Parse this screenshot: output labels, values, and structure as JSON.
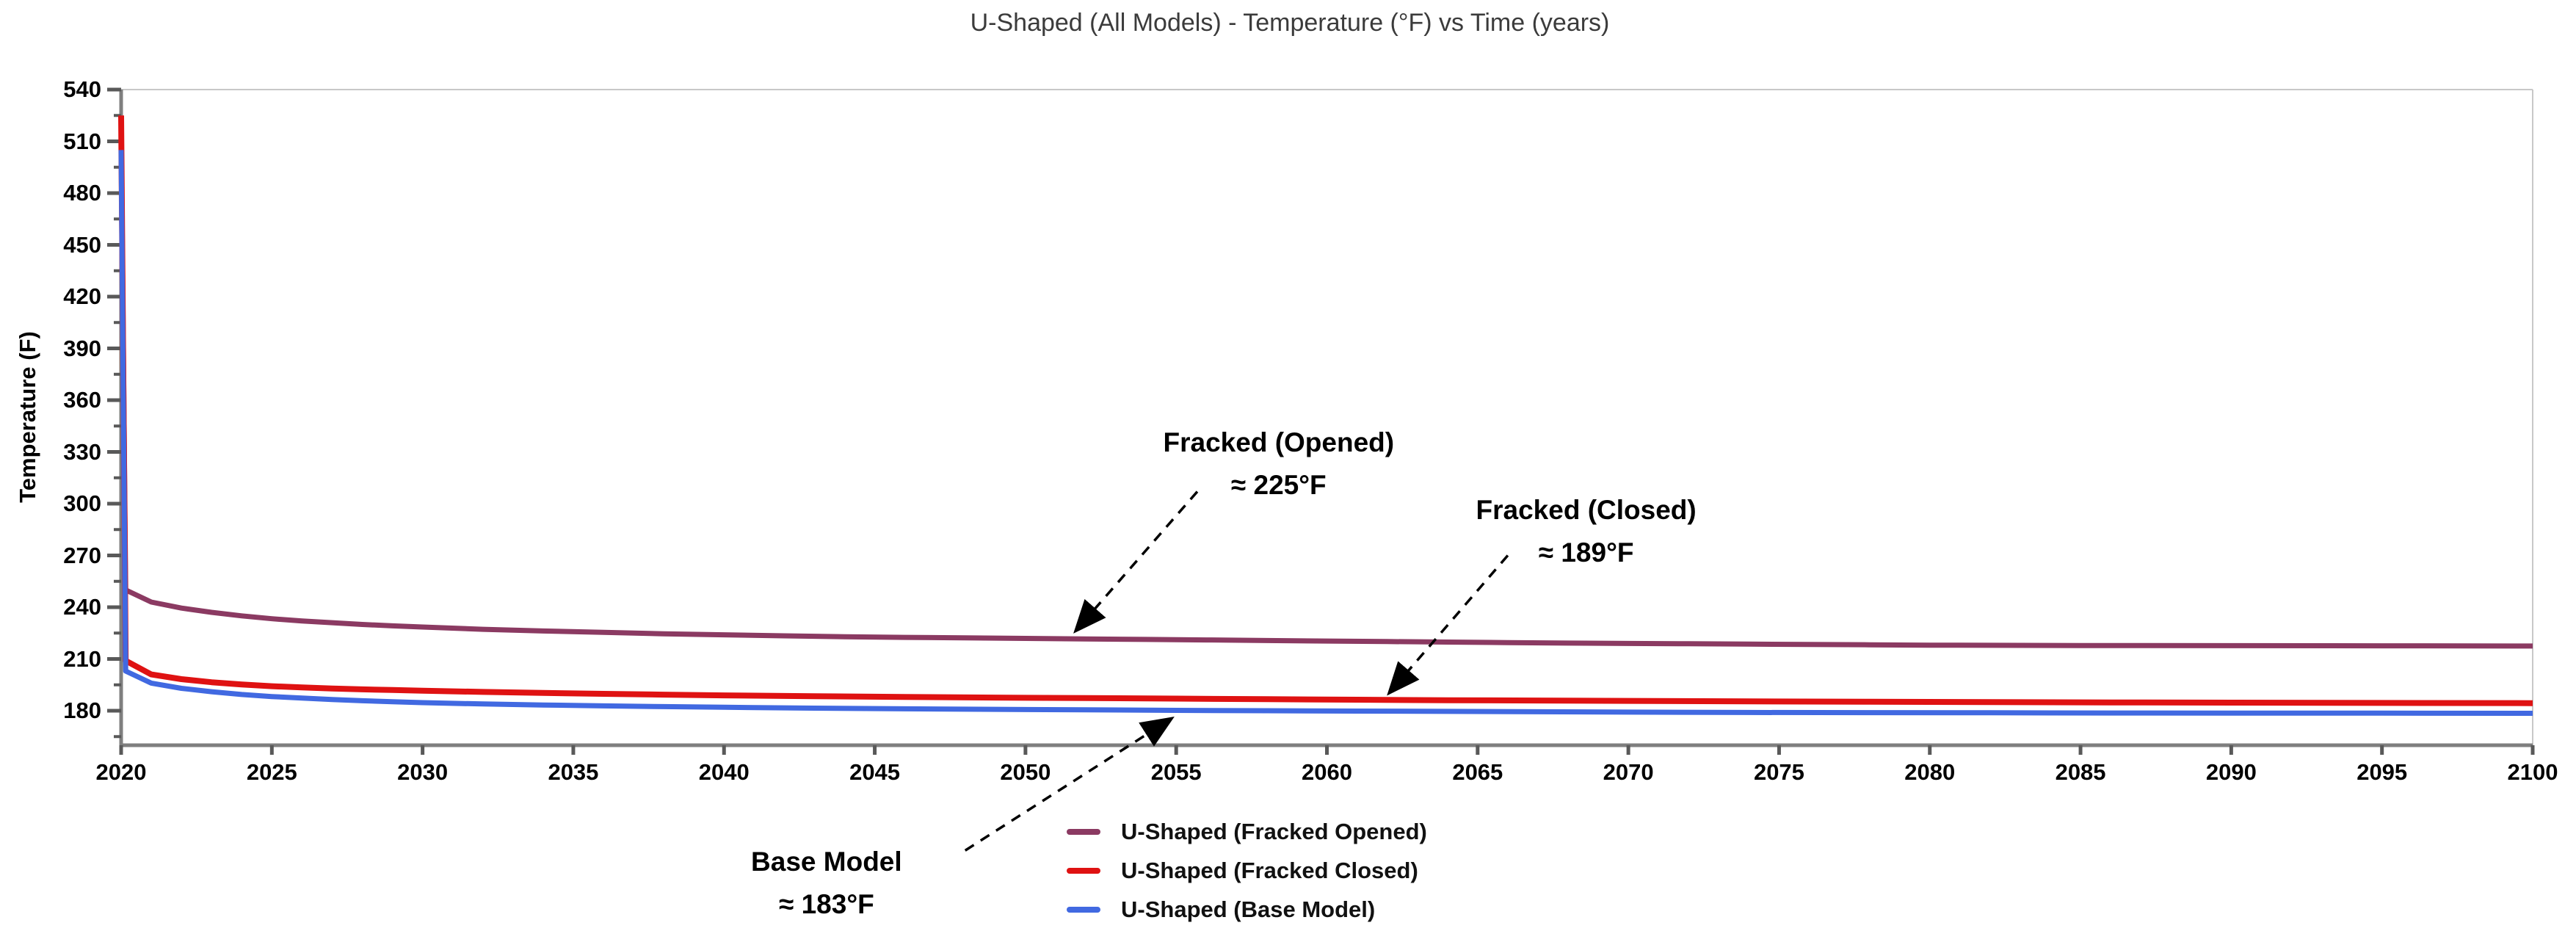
{
  "title": "U-Shaped (All Models) - Temperature (°F) vs Time (years)",
  "axes": {
    "y_label": "Temperature (F)",
    "y_ticks": [
      180,
      210,
      240,
      270,
      300,
      330,
      360,
      390,
      420,
      450,
      480,
      510,
      540
    ],
    "y_minor_ticks": [
      165,
      195,
      225,
      255,
      285,
      315,
      345,
      375,
      405,
      435,
      465,
      495,
      525
    ],
    "x_ticks": [
      2020,
      2025,
      2030,
      2035,
      2040,
      2045,
      2050,
      2055,
      2060,
      2065,
      2070,
      2075,
      2080,
      2085,
      2090,
      2095,
      2100
    ]
  },
  "colors": {
    "fracked_opened": "#8B3A62",
    "fracked_closed": "#DF1212",
    "base_model": "#4169E1",
    "axis": "#7F7F7F",
    "plot_border": "#C8C8C8",
    "tick": "#595959",
    "annotation": "#000000"
  },
  "chart_data": {
    "type": "line",
    "title": "U-Shaped (All Models) - Temperature (°F) vs Time (years)",
    "xlabel": "",
    "ylabel": "Temperature (F)",
    "xlim": [
      2020,
      2100
    ],
    "ylim": [
      160,
      540
    ],
    "grid": false,
    "legend_position": "bottom-center",
    "series": [
      {
        "name": "U-Shaped (Fracked Opened)",
        "color_key": "fracked_opened",
        "stroke_width": 7,
        "points": [
          [
            2020,
            523
          ],
          [
            2020.15,
            250
          ],
          [
            2021,
            243
          ],
          [
            2022,
            239.5
          ],
          [
            2023,
            237
          ],
          [
            2024,
            235
          ],
          [
            2025,
            233.3
          ],
          [
            2026,
            232
          ],
          [
            2027,
            231
          ],
          [
            2028,
            230
          ],
          [
            2029,
            229.2
          ],
          [
            2030,
            228.5
          ],
          [
            2032,
            227.2
          ],
          [
            2034,
            226.2
          ],
          [
            2036,
            225.4
          ],
          [
            2038,
            224.6
          ],
          [
            2040,
            224
          ],
          [
            2042,
            223.4
          ],
          [
            2044,
            222.9
          ],
          [
            2046,
            222.5
          ],
          [
            2048,
            222.2
          ],
          [
            2050,
            221.9
          ],
          [
            2052,
            221.6
          ],
          [
            2054,
            221.3
          ],
          [
            2056,
            221
          ],
          [
            2058,
            220.7
          ],
          [
            2060,
            220.4
          ],
          [
            2062,
            220.1
          ],
          [
            2064,
            219.8
          ],
          [
            2066,
            219.5
          ],
          [
            2068,
            219.2
          ],
          [
            2070,
            219
          ],
          [
            2072,
            218.8
          ],
          [
            2074,
            218.6
          ],
          [
            2076,
            218.4
          ],
          [
            2078,
            218.2
          ],
          [
            2080,
            218
          ],
          [
            2085,
            217.8
          ],
          [
            2090,
            217.7
          ],
          [
            2095,
            217.6
          ],
          [
            2100,
            217.5
          ]
        ]
      },
      {
        "name": "U-Shaped (Fracked Closed)",
        "color_key": "fracked_closed",
        "stroke_width": 8,
        "points": [
          [
            2020,
            525
          ],
          [
            2020.15,
            209
          ],
          [
            2021,
            201
          ],
          [
            2022,
            198.3
          ],
          [
            2023,
            196.5
          ],
          [
            2024,
            195.2
          ],
          [
            2025,
            194.2
          ],
          [
            2026,
            193.5
          ],
          [
            2027,
            192.9
          ],
          [
            2028,
            192.4
          ],
          [
            2029,
            192
          ],
          [
            2030,
            191.6
          ],
          [
            2032,
            190.9
          ],
          [
            2034,
            190.3
          ],
          [
            2036,
            189.8
          ],
          [
            2038,
            189.3
          ],
          [
            2040,
            188.9
          ],
          [
            2043,
            188.4
          ],
          [
            2046,
            188
          ],
          [
            2049,
            187.6
          ],
          [
            2052,
            187.3
          ],
          [
            2055,
            187
          ],
          [
            2058,
            186.7
          ],
          [
            2061,
            186.4
          ],
          [
            2064,
            186.1
          ],
          [
            2067,
            185.9
          ],
          [
            2070,
            185.7
          ],
          [
            2074,
            185.4
          ],
          [
            2078,
            185.2
          ],
          [
            2082,
            185
          ],
          [
            2086,
            184.8
          ],
          [
            2090,
            184.7
          ],
          [
            2095,
            184.5
          ],
          [
            2100,
            184.4
          ]
        ]
      },
      {
        "name": "U-Shaped (Base Model)",
        "color_key": "base_model",
        "stroke_width": 7,
        "points": [
          [
            2020,
            505
          ],
          [
            2020.15,
            203
          ],
          [
            2021,
            196
          ],
          [
            2022,
            193
          ],
          [
            2023,
            191
          ],
          [
            2024,
            189.4
          ],
          [
            2025,
            188.2
          ],
          [
            2026,
            187.3
          ],
          [
            2027,
            186.5
          ],
          [
            2028,
            185.8
          ],
          [
            2029,
            185.2
          ],
          [
            2030,
            184.7
          ],
          [
            2032,
            183.9
          ],
          [
            2034,
            183.3
          ],
          [
            2036,
            182.8
          ],
          [
            2038,
            182.4
          ],
          [
            2040,
            182
          ],
          [
            2043,
            181.5
          ],
          [
            2046,
            181.1
          ],
          [
            2049,
            180.8
          ],
          [
            2052,
            180.5
          ],
          [
            2055,
            180.2
          ],
          [
            2058,
            180
          ],
          [
            2061,
            179.8
          ],
          [
            2064,
            179.6
          ],
          [
            2067,
            179.4
          ],
          [
            2070,
            179.2
          ],
          [
            2074,
            179
          ],
          [
            2078,
            178.9
          ],
          [
            2082,
            178.8
          ],
          [
            2086,
            178.7
          ],
          [
            2090,
            178.6
          ],
          [
            2095,
            178.6
          ],
          [
            2100,
            178.5
          ]
        ]
      }
    ],
    "annotations": [
      {
        "lines": [
          "Fracked (Opened)",
          "≈ 225°F"
        ],
        "label_year": 2058.4,
        "label_temp": 323,
        "arrow_from": [
          2055.7,
          307
        ],
        "arrow_to": [
          2051.7,
          227
        ]
      },
      {
        "lines": [
          "Fracked (Closed)",
          "≈ 189°F"
        ],
        "label_year": 2068.6,
        "label_temp": 284,
        "arrow_from": [
          2066.0,
          270
        ],
        "arrow_to": [
          2062.1,
          191
        ]
      },
      {
        "lines": [
          "Base Model",
          "≈ 183°F"
        ],
        "label_year": 2043.4,
        "label_temp": 80,
        "arrow_from": [
          2048.0,
          99
        ],
        "arrow_to": [
          2054.8,
          175
        ]
      }
    ]
  },
  "legend": {
    "items": [
      {
        "label": "U-Shaped (Fracked Opened)",
        "color_key": "fracked_opened"
      },
      {
        "label": "U-Shaped (Fracked Closed)",
        "color_key": "fracked_closed"
      },
      {
        "label": "U-Shaped (Base Model)",
        "color_key": "base_model"
      }
    ]
  }
}
